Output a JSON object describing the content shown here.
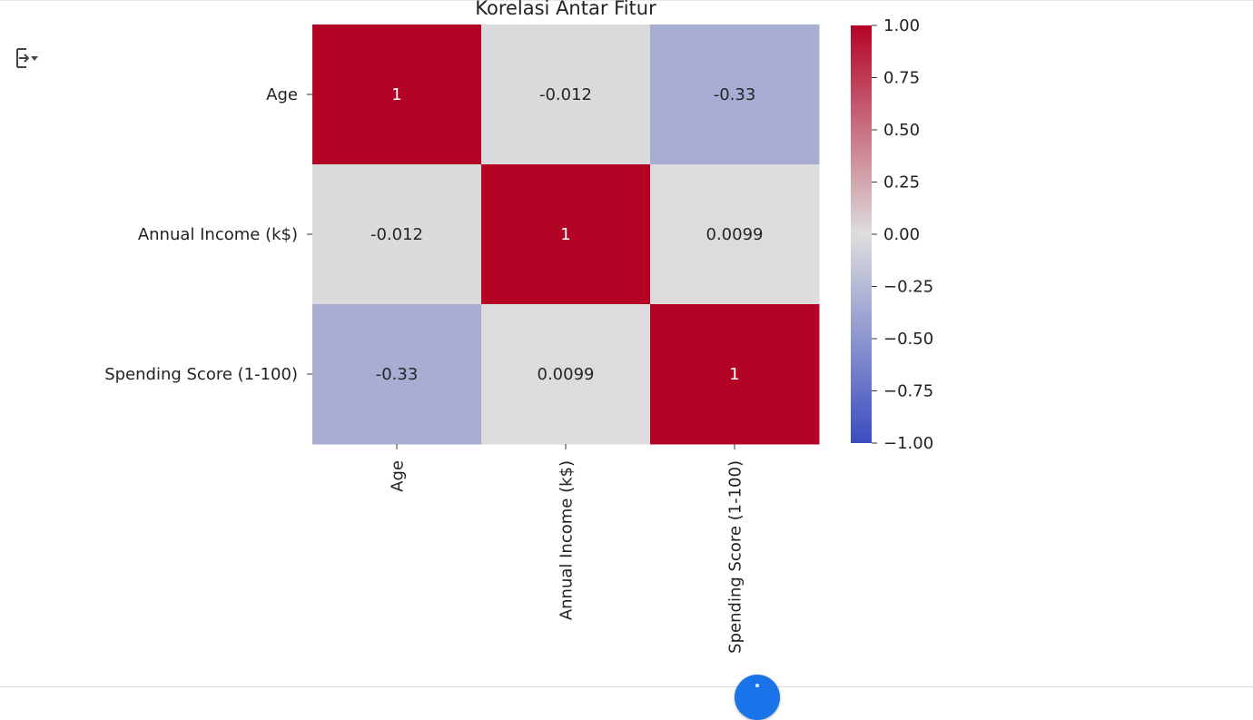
{
  "output_toggle": {
    "icon": "output-toggle-icon"
  },
  "fab": {
    "icon": "fab-icon",
    "color": "#1a73e8"
  },
  "chart_data": {
    "type": "heatmap",
    "title": "Korelasi Antar Fitur",
    "rows": [
      "Age",
      "Annual Income (k$)",
      "Spending Score (1-100)"
    ],
    "columns": [
      "Age",
      "Annual Income (k$)",
      "Spending Score (1-100)"
    ],
    "values": [
      [
        1,
        -0.012,
        -0.33
      ],
      [
        -0.012,
        1,
        0.0099
      ],
      [
        -0.33,
        0.0099,
        1
      ]
    ],
    "annotations": [
      [
        "1",
        "-0.012",
        "-0.33"
      ],
      [
        "-0.012",
        "1",
        "0.0099"
      ],
      [
        "-0.33",
        "0.0099",
        "1"
      ]
    ],
    "colormap": "coolwarm",
    "colors": {
      "low": "#3b4cc0",
      "mid": "#dddddd",
      "high": "#b40426"
    },
    "vmin": -1,
    "vmax": 1,
    "colorbar": {
      "ticks": [
        1.0,
        0.75,
        0.5,
        0.25,
        0.0,
        -0.25,
        -0.5,
        -0.75,
        -1.0
      ],
      "tick_labels": [
        "1.00",
        "0.75",
        "0.50",
        "0.25",
        "0.00",
        "−0.25",
        "−0.50",
        "−0.75",
        "−1.00"
      ]
    }
  }
}
